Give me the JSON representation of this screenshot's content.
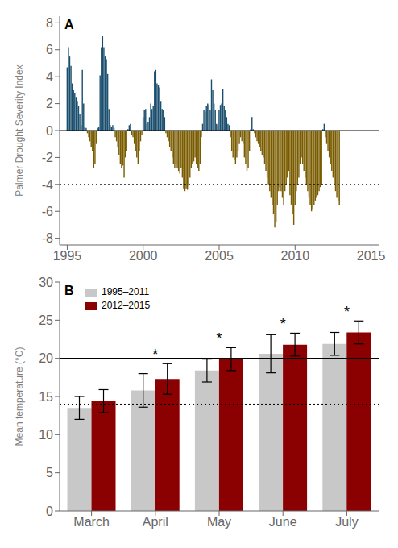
{
  "chart_data": [
    {
      "type": "bar",
      "title": "A",
      "ylabel": "Palmer Drought Severity Index",
      "x": [
        1995,
        1995.083333333333,
        1995.166666666667,
        1995.25,
        1995.333333333333,
        1995.416666666667,
        1995.5,
        1995.583333333333,
        1995.666666666667,
        1995.75,
        1995.833333333333,
        1995.916666666667,
        1996,
        1996.083333333333,
        1996.166666666667,
        1996.25,
        1996.333333333333,
        1996.416666666667,
        1996.5,
        1996.583333333333,
        1996.666666666667,
        1996.75,
        1996.833333333333,
        1996.916666666667,
        1997,
        1997.083333333333,
        1997.166666666667,
        1997.25,
        1997.333333333333,
        1997.416666666667,
        1997.5,
        1997.583333333333,
        1997.666666666667,
        1997.75,
        1997.833333333333,
        1997.916666666667,
        1998,
        1998.083333333333,
        1998.166666666667,
        1998.25,
        1998.333333333333,
        1998.416666666667,
        1998.5,
        1998.583333333333,
        1998.666666666667,
        1998.75,
        1998.833333333333,
        1998.916666666667,
        1999,
        1999.083333333333,
        1999.166666666667,
        1999.25,
        1999.333333333333,
        1999.416666666667,
        1999.5,
        1999.583333333333,
        1999.666666666667,
        1999.75,
        1999.833333333333,
        1999.916666666667,
        2000,
        2000.083333333333,
        2000.166666666667,
        2000.25,
        2000.333333333333,
        2000.416666666667,
        2000.5,
        2000.583333333333,
        2000.666666666667,
        2000.75,
        2000.833333333333,
        2000.916666666667,
        2001,
        2001.083333333333,
        2001.166666666667,
        2001.25,
        2001.333333333333,
        2001.416666666667,
        2001.5,
        2001.583333333333,
        2001.666666666667,
        2001.75,
        2001.833333333333,
        2001.916666666667,
        2002,
        2002.083333333333,
        2002.166666666667,
        2002.25,
        2002.333333333333,
        2002.416666666667,
        2002.5,
        2002.583333333333,
        2002.666666666667,
        2002.75,
        2002.833333333333,
        2002.916666666667,
        2003,
        2003.083333333333,
        2003.166666666667,
        2003.25,
        2003.333333333333,
        2003.416666666667,
        2003.5,
        2003.583333333333,
        2003.666666666667,
        2003.75,
        2003.833333333333,
        2003.916666666667,
        2004,
        2004.083333333333,
        2004.166666666667,
        2004.25,
        2004.333333333333,
        2004.416666666667,
        2004.5,
        2004.583333333333,
        2004.666666666667,
        2004.75,
        2004.833333333333,
        2004.916666666667,
        2005,
        2005.083333333333,
        2005.166666666667,
        2005.25,
        2005.333333333333,
        2005.416666666667,
        2005.5,
        2005.583333333333,
        2005.666666666667,
        2005.75,
        2005.833333333333,
        2005.916666666667,
        2006,
        2006.083333333333,
        2006.166666666667,
        2006.25,
        2006.333333333333,
        2006.416666666667,
        2006.5,
        2006.583333333333,
        2006.666666666667,
        2006.75,
        2006.833333333333,
        2006.916666666667,
        2007,
        2007.083333333333,
        2007.166666666667,
        2007.25,
        2007.333333333333,
        2007.416666666667,
        2007.5,
        2007.583333333333,
        2007.666666666667,
        2007.75,
        2007.833333333333,
        2007.916666666667,
        2008,
        2008.083333333333,
        2008.166666666667,
        2008.25,
        2008.333333333333,
        2008.416666666667,
        2008.5,
        2008.583333333333,
        2008.666666666667,
        2008.75,
        2008.833333333333,
        2008.916666666667,
        2009,
        2009.083333333333,
        2009.166666666667,
        2009.25,
        2009.333333333333,
        2009.416666666667,
        2009.5,
        2009.583333333333,
        2009.666666666667,
        2009.75,
        2009.833333333333,
        2009.916666666667,
        2010,
        2010.083333333333,
        2010.166666666667,
        2010.25,
        2010.333333333333,
        2010.416666666667,
        2010.5,
        2010.583333333333,
        2010.666666666667,
        2010.75,
        2010.833333333333,
        2010.916666666667,
        2011,
        2011.083333333333,
        2011.166666666667,
        2011.25,
        2011.333333333333,
        2011.416666666667,
        2011.5,
        2011.583333333333,
        2011.666666666667,
        2011.75,
        2011.833333333333,
        2011.916666666667,
        2012,
        2012.083333333333,
        2012.166666666667,
        2012.25,
        2012.333333333333,
        2012.416666666667,
        2012.5,
        2012.583333333333,
        2012.666666666667,
        2012.75,
        2012.833333333333,
        2012.916666666667
      ],
      "values": [
        4.7,
        6.2,
        5.5,
        4.8,
        3.5,
        3.0,
        2.8,
        2.5,
        2.2,
        1.8,
        1.2,
        0.4,
        4.5,
        2.0,
        0.3,
        0.2,
        -0.2,
        -0.5,
        -0.8,
        -1.2,
        -1.5,
        -2.8,
        -2.5,
        -1.0,
        0.2,
        0.3,
        4.1,
        6.2,
        7.0,
        6.2,
        5.5,
        5.3,
        4.2,
        1.6,
        0.4,
        0.3,
        0.4,
        0.2,
        -0.5,
        -0.8,
        -1.2,
        -1.8,
        -2.5,
        -2.8,
        -2.6,
        -3.5,
        -2.0,
        -1.5,
        0.1,
        0.4,
        0.5,
        -0.3,
        -0.5,
        -1.0,
        -1.5,
        -2.0,
        -2.5,
        -1.5,
        -0.8,
        -0.3,
        1.0,
        1.5,
        1.6,
        0.5,
        0.6,
        1.0,
        2.0,
        1.6,
        1.8,
        4.4,
        4.5,
        3.5,
        3.4,
        3.2,
        2.2,
        1.6,
        1.5,
        1.0,
        -0.2,
        -0.5,
        -0.8,
        -1.2,
        -1.5,
        -2.0,
        -2.5,
        -2.8,
        -2.5,
        -2.8,
        -3.0,
        -3.2,
        -2.8,
        -3.5,
        -4.3,
        -4.5,
        -4.3,
        -4.4,
        -4.1,
        -3.5,
        -2.8,
        -2.5,
        -2.3,
        -2.0,
        -2.5,
        -2.8,
        -3.0,
        -2.5,
        -0.5,
        0.5,
        1.5,
        1.4,
        1.8,
        2.0,
        1.9,
        1.5,
        3.8,
        3.0,
        2.0,
        1.5,
        0.5,
        0.4,
        1.5,
        1.9,
        2.0,
        3.1,
        1.8,
        1.5,
        1.0,
        0.5,
        0.4,
        -0.5,
        -1.5,
        -2.0,
        -2.2,
        -2.5,
        -2.0,
        -1.5,
        -1.0,
        -0.5,
        -0.8,
        -1.0,
        -2.0,
        -2.5,
        -3.0,
        -2.8,
        -1.5,
        0.1,
        1.0,
        0.1,
        -0.2,
        -0.5,
        -0.8,
        -1.0,
        -1.2,
        -1.5,
        -1.8,
        -2.0,
        -2.5,
        -3.0,
        -3.5,
        -4.0,
        -4.5,
        -5.0,
        -5.5,
        -6.2,
        -7.2,
        -6.8,
        -5.5,
        -4.5,
        -4.2,
        -4.5,
        -5.0,
        -5.5,
        -4.5,
        -4.0,
        -3.5,
        -3.0,
        -4.8,
        -5.5,
        -6.2,
        -7.0,
        -5.5,
        -4.5,
        -4.0,
        -3.5,
        -2.5,
        -2.0,
        -2.5,
        -3.0,
        -3.5,
        -4.0,
        -4.5,
        -5.0,
        -5.5,
        -6.0,
        -5.8,
        -5.5,
        -5.2,
        -5.0,
        -4.8,
        -4.5,
        -4.2,
        -4.0,
        0.1,
        0.5,
        -0.5,
        -1.0,
        -1.5,
        -2.0,
        -2.5,
        -3.0,
        -3.5,
        -4.0,
        -4.5,
        -5.0,
        -5.2,
        -5.5
      ],
      "colors": [
        "#1a4e6e",
        "#1a4e6e",
        "#1a4e6e",
        "#1a4e6e",
        "#1a4e6e",
        "#1a4e6e",
        "#1a4e6e",
        "#1a4e6e",
        "#1a4e6e",
        "#1a4e6e",
        "#1a4e6e",
        "#1a4e6e",
        "#1a4e6e",
        "#1a4e6e",
        "#1a4e6e",
        "#1a4e6e",
        "#7a5c00",
        "#7a5c00",
        "#7a5c00",
        "#7a5c00",
        "#7a5c00",
        "#7a5c00",
        "#7a5c00",
        "#7a5c00",
        "#1a4e6e",
        "#1a4e6e",
        "#1a4e6e",
        "#1a4e6e",
        "#1a4e6e",
        "#1a4e6e",
        "#1a4e6e",
        "#1a4e6e",
        "#1a4e6e",
        "#1a4e6e",
        "#1a4e6e",
        "#1a4e6e",
        "#1a4e6e",
        "#1a4e6e",
        "#7a5c00",
        "#7a5c00",
        "#7a5c00",
        "#7a5c00",
        "#7a5c00",
        "#7a5c00",
        "#7a5c00",
        "#7a5c00",
        "#7a5c00",
        "#7a5c00",
        "#1a4e6e",
        "#1a4e6e",
        "#1a4e6e",
        "#7a5c00",
        "#7a5c00",
        "#7a5c00",
        "#7a5c00",
        "#7a5c00",
        "#7a5c00",
        "#7a5c00",
        "#7a5c00",
        "#7a5c00",
        "#1a4e6e",
        "#1a4e6e",
        "#1a4e6e",
        "#1a4e6e",
        "#1a4e6e",
        "#1a4e6e",
        "#1a4e6e",
        "#1a4e6e",
        "#1a4e6e",
        "#1a4e6e",
        "#1a4e6e",
        "#1a4e6e",
        "#1a4e6e",
        "#1a4e6e",
        "#1a4e6e",
        "#1a4e6e",
        "#1a4e6e",
        "#1a4e6e",
        "#7a5c00",
        "#7a5c00",
        "#7a5c00",
        "#7a5c00",
        "#7a5c00",
        "#7a5c00",
        "#7a5c00",
        "#7a5c00",
        "#7a5c00",
        "#7a5c00",
        "#7a5c00",
        "#7a5c00",
        "#7a5c00",
        "#7a5c00",
        "#7a5c00",
        "#7a5c00",
        "#7a5c00",
        "#7a5c00",
        "#7a5c00",
        "#7a5c00",
        "#7a5c00",
        "#7a5c00",
        "#7a5c00",
        "#7a5c00",
        "#7a5c00",
        "#7a5c00",
        "#7a5c00",
        "#7a5c00",
        "#7a5c00",
        "#1a4e6e",
        "#1a4e6e",
        "#1a4e6e",
        "#1a4e6e",
        "#1a4e6e",
        "#1a4e6e",
        "#1a4e6e",
        "#1a4e6e",
        "#1a4e6e",
        "#1a4e6e",
        "#1a4e6e",
        "#1a4e6e",
        "#1a4e6e",
        "#1a4e6e",
        "#1a4e6e",
        "#1a4e6e",
        "#1a4e6e",
        "#1a4e6e",
        "#1a4e6e",
        "#1a4e6e",
        "#1a4e6e",
        "#1a4e6e",
        "#7a5c00",
        "#7a5c00",
        "#7a5c00",
        "#7a5c00",
        "#7a5c00",
        "#7a5c00",
        "#7a5c00",
        "#7a5c00",
        "#7a5c00",
        "#7a5c00",
        "#7a5c00",
        "#7a5c00",
        "#7a5c00",
        "#7a5c00",
        "#7a5c00",
        "#7a5c00",
        "#1a4e6e",
        "#1a4e6e",
        "#1a4e6e",
        "#7a5c00",
        "#7a5c00",
        "#7a5c00",
        "#7a5c00",
        "#7a5c00",
        "#7a5c00",
        "#7a5c00",
        "#7a5c00",
        "#7a5c00",
        "#7a5c00",
        "#7a5c00",
        "#7a5c00",
        "#7a5c00",
        "#7a5c00",
        "#7a5c00",
        "#7a5c00",
        "#7a5c00",
        "#7a5c00",
        "#7a5c00",
        "#7a5c00",
        "#7a5c00",
        "#7a5c00",
        "#7a5c00",
        "#7a5c00",
        "#7a5c00",
        "#7a5c00",
        "#7a5c00",
        "#7a5c00",
        "#7a5c00",
        "#7a5c00",
        "#7a5c00",
        "#7a5c00",
        "#7a5c00",
        "#7a5c00",
        "#7a5c00",
        "#7a5c00",
        "#7a5c00",
        "#7a5c00",
        "#7a5c00",
        "#7a5c00",
        "#7a5c00",
        "#7a5c00",
        "#7a5c00",
        "#7a5c00",
        "#7a5c00",
        "#7a5c00",
        "#7a5c00",
        "#7a5c00",
        "#7a5c00",
        "#7a5c00",
        "#7a5c00",
        "#7a5c00",
        "#7a5c00",
        "#7a5c00",
        "#1a4e6e",
        "#1a4e6e",
        "#7a5c00",
        "#7a5c00",
        "#7a5c00",
        "#7a5c00",
        "#7a5c00",
        "#7a5c00",
        "#7a5c00",
        "#7a5c00",
        "#7a5c00",
        "#7a5c00",
        "#7a5c00",
        "#7a5c00"
      ],
      "xlim": [
        1994.5,
        2015.5
      ],
      "xticks": [
        1995,
        2000,
        2005,
        2010,
        2015
      ],
      "ylim": [
        -8.5,
        8.5
      ],
      "yticks": [
        -8,
        -6,
        -4,
        -2,
        0,
        2,
        4,
        6,
        8
      ],
      "reference_lines": [
        {
          "value": 0,
          "line_style": "solid"
        },
        {
          "value": -4,
          "line_style": "dotted"
        }
      ],
      "grid": false
    },
    {
      "type": "bar",
      "title": "B",
      "ylabel": "Mean temperature (°C)",
      "categories": [
        "March",
        "April",
        "May",
        "June",
        "July"
      ],
      "series": [
        {
          "name": "1995–2011",
          "color": "#c8c8c8",
          "values": [
            13.5,
            15.8,
            18.4,
            20.6,
            21.9
          ],
          "errors": [
            1.5,
            2.2,
            1.5,
            2.5,
            1.5
          ]
        },
        {
          "name": "2012–2015",
          "color": "#8b0000",
          "values": [
            14.4,
            17.3,
            19.9,
            21.8,
            23.4
          ],
          "errors": [
            1.5,
            2.0,
            1.5,
            1.5,
            1.5
          ]
        }
      ],
      "ylim": [
        0,
        30
      ],
      "yticks": [
        0,
        5,
        10,
        15,
        20,
        25,
        30
      ],
      "reference_lines": [
        {
          "value": 20,
          "line_style": "solid"
        },
        {
          "value": 14,
          "line_style": "dotted"
        }
      ],
      "annotations": [
        {
          "category": "April",
          "text": "*"
        },
        {
          "category": "May",
          "text": "*"
        },
        {
          "category": "June",
          "text": "*"
        },
        {
          "category": "July",
          "text": "*"
        }
      ],
      "legend": "upper left",
      "grid": false
    }
  ]
}
